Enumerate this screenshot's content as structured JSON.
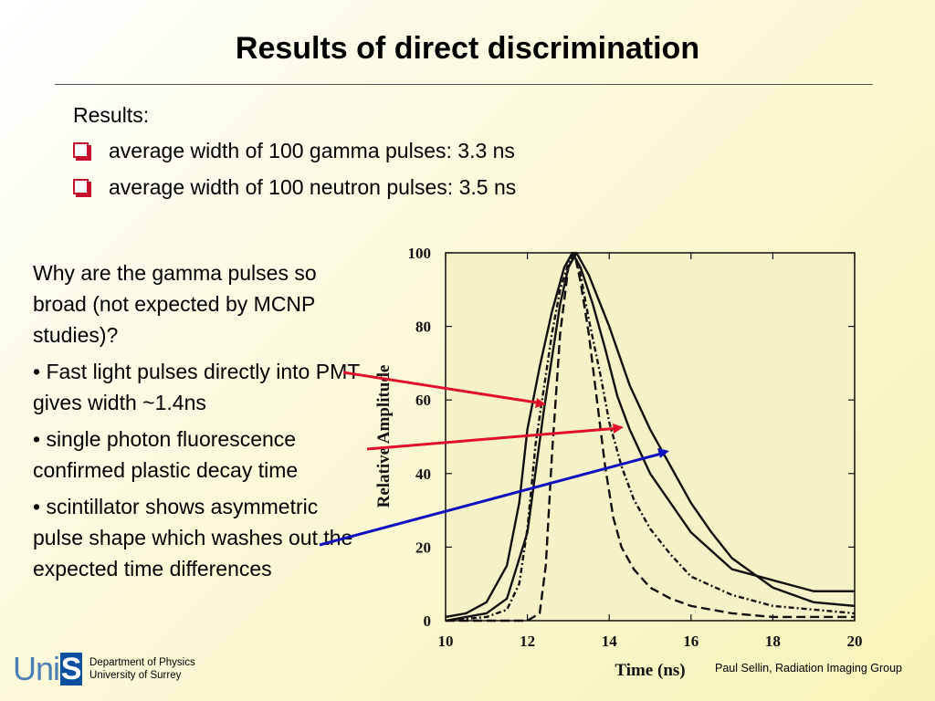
{
  "slide": {
    "title": "Results of direct discrimination",
    "results_heading": "Results:",
    "bullets": [
      "average width of 100 gamma pulses: 3.3 ns",
      "average width of 100 neutron pulses: 3.5 ns"
    ],
    "side_notes": [
      "Why are the gamma pulses so broad (not expected by MCNP studies)?",
      "• Fast light pulses directly into PMT gives width ~1.4ns",
      "• single photon fluorescence confirmed plastic decay time",
      "• scintillator shows asymmetric pulse shape which washes out the expected time differences"
    ],
    "footer": {
      "logo_text_uni": "Uni",
      "logo_text_s": "S",
      "dept_line1": "Department of Physics",
      "dept_line2": "University of Surrey",
      "credit": "Paul Sellin, Radiation Imaging Group"
    },
    "colors": {
      "bullet_accent": "#c8102e",
      "arrow_red": "#e0102a",
      "arrow_blue": "#1010c0",
      "logo_blue": "#0b4fa0"
    }
  },
  "chart_data": {
    "type": "line",
    "title": "",
    "xlabel": "Time (ns)",
    "ylabel": "Relative Amplitude",
    "xlim": [
      10,
      20
    ],
    "ylim": [
      0,
      100
    ],
    "xticks": [
      10,
      12,
      14,
      16,
      18,
      20
    ],
    "yticks": [
      0,
      20,
      40,
      60,
      80,
      100
    ],
    "grid": false,
    "series": [
      {
        "style": "dashed",
        "x": [
          10,
          11,
          12,
          12.3,
          12.45,
          12.6,
          12.8,
          13.0,
          13.15,
          13.3,
          13.5,
          13.7,
          13.9,
          14.1,
          14.3,
          14.6,
          15.0,
          15.5,
          16.0,
          17.0,
          18.0,
          19.0,
          20.0
        ],
        "y": [
          0,
          0,
          0,
          2,
          15,
          45,
          78,
          96,
          100,
          92,
          78,
          60,
          42,
          28,
          20,
          14,
          9,
          6,
          4,
          2,
          1,
          1,
          1
        ]
      },
      {
        "style": "dash-dot",
        "x": [
          10,
          11,
          11.5,
          11.8,
          12.0,
          12.2,
          12.4,
          12.6,
          12.8,
          13.0,
          13.15,
          13.3,
          13.5,
          13.8,
          14.0,
          14.3,
          14.6,
          15.0,
          15.5,
          16.0,
          17.0,
          18.0,
          19.0,
          20.0
        ],
        "y": [
          0,
          1,
          3,
          10,
          25,
          48,
          63,
          78,
          90,
          97,
          100,
          94,
          82,
          66,
          54,
          42,
          33,
          25,
          18,
          12,
          7,
          4,
          3,
          2
        ]
      },
      {
        "style": "solid",
        "x": [
          10,
          10.5,
          11,
          11.5,
          11.8,
          12.0,
          12.3,
          12.6,
          12.9,
          13.1,
          13.3,
          13.6,
          13.9,
          14.2,
          14.5,
          15.0,
          15.5,
          16.0,
          17.0,
          18.0,
          19.0,
          20.0
        ],
        "y": [
          1,
          2,
          5,
          15,
          32,
          52,
          69,
          84,
          96,
          100,
          96,
          86,
          74,
          61,
          52,
          40,
          32,
          24,
          14,
          11,
          8,
          8
        ]
      },
      {
        "style": "solid",
        "x": [
          10,
          11,
          11.5,
          12.0,
          12.4,
          12.8,
          13.0,
          13.2,
          13.5,
          14.0,
          14.5,
          15.0,
          15.5,
          16.0,
          16.5,
          17.0,
          18.0,
          19.0,
          20.0
        ],
        "y": [
          0,
          2,
          6,
          24,
          57,
          86,
          96,
          100,
          94,
          80,
          64,
          52,
          42,
          32,
          24,
          17,
          9,
          5,
          4
        ]
      }
    ]
  }
}
